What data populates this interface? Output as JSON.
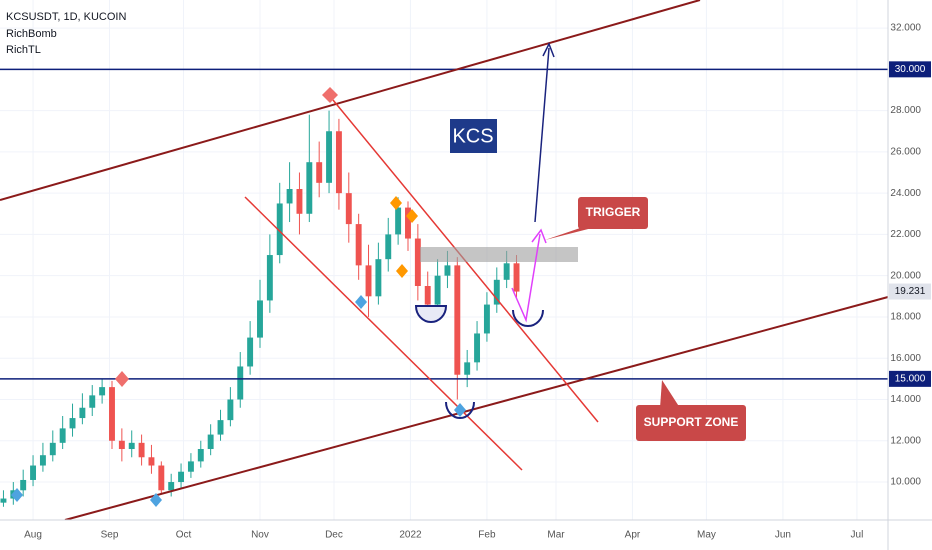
{
  "chart_data": {
    "type": "candlestick",
    "title": "KCSUSDT, 1D, KUCOIN",
    "indicators": [
      "RichBomb",
      "RichTL"
    ],
    "annotations": [
      "KCS",
      "TRIGGER",
      "SUPPORT ZONE"
    ],
    "up_color": "#26a69a",
    "down_color": "#ef5350",
    "grid": true,
    "x": [
      -12,
      -8,
      -4,
      0,
      4,
      8,
      12,
      16,
      20,
      24,
      28,
      32,
      36,
      40,
      44,
      48,
      52,
      56,
      60,
      64,
      68,
      72,
      76,
      80,
      84,
      88,
      92,
      96,
      100,
      104,
      108,
      112,
      116,
      120,
      124,
      128,
      132,
      136,
      140,
      144,
      148,
      152,
      156,
      160,
      164,
      168,
      172,
      176,
      180,
      184,
      188,
      192,
      196
    ],
    "open": [
      9.0,
      9.2,
      9.6,
      10.1,
      10.8,
      11.3,
      11.9,
      12.6,
      13.1,
      13.6,
      14.2,
      14.6,
      12.0,
      11.6,
      11.9,
      11.2,
      10.8,
      9.6,
      10.0,
      10.5,
      11.0,
      11.6,
      12.3,
      13.0,
      14.0,
      15.6,
      17.0,
      18.8,
      21.0,
      23.5,
      24.2,
      23.0,
      25.5,
      24.5,
      27.0,
      24.0,
      22.5,
      20.5,
      19.0,
      20.8,
      22.0,
      23.3,
      21.8,
      19.5,
      18.6,
      20.0,
      20.5,
      15.2,
      15.8,
      17.2,
      18.6,
      19.8,
      20.6
    ],
    "high": [
      9.6,
      10.0,
      10.6,
      11.3,
      11.9,
      12.5,
      13.2,
      13.8,
      14.3,
      14.7,
      15.0,
      14.9,
      12.6,
      12.5,
      12.3,
      11.8,
      11.0,
      10.4,
      10.9,
      11.4,
      12.0,
      12.8,
      13.5,
      14.6,
      16.3,
      17.8,
      19.8,
      22.0,
      24.5,
      25.5,
      25.0,
      27.8,
      26.5,
      28.0,
      27.6,
      25.0,
      23.0,
      21.5,
      21.6,
      22.8,
      23.8,
      23.6,
      22.5,
      20.2,
      20.8,
      21.2,
      20.9,
      16.4,
      17.8,
      19.2,
      20.4,
      21.2,
      21.0
    ],
    "low": [
      8.8,
      8.9,
      9.3,
      9.8,
      10.5,
      11.0,
      11.6,
      12.2,
      12.8,
      13.2,
      13.8,
      11.6,
      11.0,
      11.2,
      10.8,
      10.4,
      9.4,
      9.3,
      9.7,
      10.2,
      10.7,
      11.3,
      12.0,
      12.7,
      13.6,
      15.2,
      16.5,
      18.2,
      20.6,
      22.6,
      22.0,
      22.6,
      23.8,
      24.0,
      23.2,
      21.6,
      19.8,
      18.0,
      18.6,
      20.2,
      21.5,
      21.2,
      18.8,
      18.0,
      18.2,
      19.4,
      14.0,
      14.6,
      15.4,
      16.8,
      18.2,
      19.4,
      18.9
    ],
    "close": [
      9.2,
      9.6,
      10.1,
      10.8,
      11.3,
      11.9,
      12.6,
      13.1,
      13.6,
      14.2,
      14.6,
      12.0,
      11.6,
      11.9,
      11.2,
      10.8,
      9.6,
      10.0,
      10.5,
      11.0,
      11.6,
      12.3,
      13.0,
      14.0,
      15.6,
      17.0,
      18.8,
      21.0,
      23.5,
      24.2,
      23.0,
      25.5,
      24.5,
      27.0,
      24.0,
      22.5,
      20.5,
      19.0,
      20.8,
      22.0,
      23.3,
      21.8,
      19.5,
      18.6,
      20.0,
      20.5,
      15.2,
      15.8,
      17.2,
      18.6,
      19.8,
      20.6,
      19.23
    ],
    "xlim": [
      -13.4,
      346.6
    ],
    "xticks": [
      {
        "value": 0,
        "label": "Aug"
      },
      {
        "value": 31,
        "label": "Sep"
      },
      {
        "value": 61,
        "label": "Oct"
      },
      {
        "value": 92,
        "label": "Nov"
      },
      {
        "value": 122,
        "label": "Dec"
      },
      {
        "value": 153,
        "label": "2022"
      },
      {
        "value": 184,
        "label": "Feb"
      },
      {
        "value": 212,
        "label": "Mar"
      },
      {
        "value": 243,
        "label": "Apr"
      },
      {
        "value": 273,
        "label": "May"
      },
      {
        "value": 304,
        "label": "Jun"
      },
      {
        "value": 334,
        "label": "Jul"
      }
    ],
    "ylim": [
      8.16,
      33.36
    ],
    "yticks": [
      {
        "value": 10,
        "label": "10.000"
      },
      {
        "value": 12,
        "label": "12.000"
      },
      {
        "value": 14,
        "label": "14.000"
      },
      {
        "value": 16,
        "label": "16.000"
      },
      {
        "value": 18,
        "label": "18.000"
      },
      {
        "value": 20,
        "label": "20.000"
      },
      {
        "value": 22,
        "label": "22.000"
      },
      {
        "value": 24,
        "label": "24.000"
      },
      {
        "value": 26,
        "label": "26.000"
      },
      {
        "value": 28,
        "label": "28.000"
      },
      {
        "value": 30,
        "label": "30.000"
      },
      {
        "value": 32,
        "label": "32.000"
      }
    ],
    "levels": [
      {
        "value": 30,
        "label": "30.000"
      },
      {
        "value": 15,
        "label": "15.000"
      }
    ],
    "level_color": "#0d1f7a",
    "last_price": {
      "value": 19.231,
      "label": "19.231"
    }
  }
}
